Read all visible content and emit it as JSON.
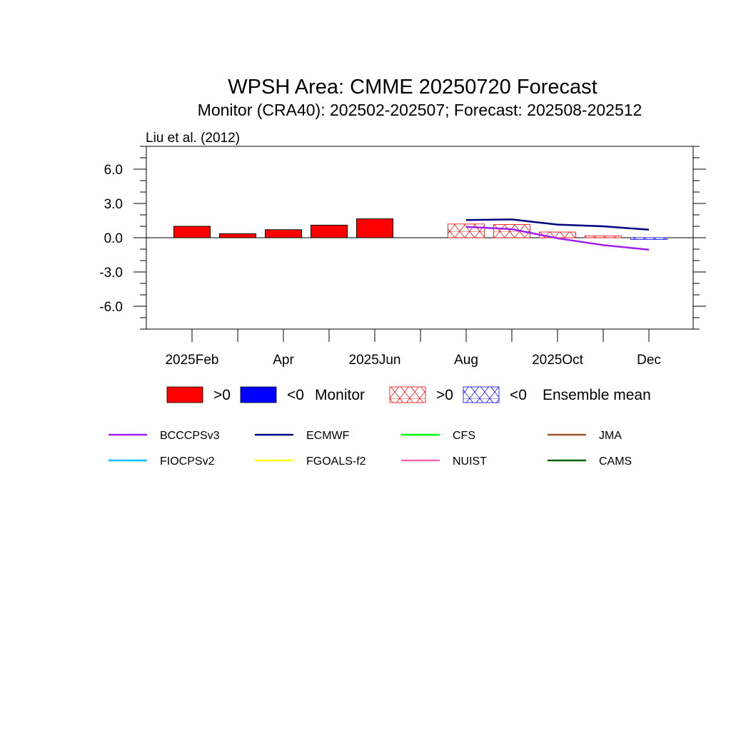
{
  "chart_data": {
    "type": "bar",
    "title": "WPSH Area: CMME 20250720 Forecast",
    "subtitle": "Monitor (CRA40): 202502-202507; Forecast: 202508-202512",
    "annotation": "Liu et al. (2012)",
    "ylim": [
      -8,
      8
    ],
    "yticks": [
      6.0,
      3.0,
      0.0,
      -3.0,
      -6.0
    ],
    "ytick_labels": [
      "6.0",
      "3.0",
      "0.0",
      "-3.0",
      "-6.0"
    ],
    "months": [
      "2025-02",
      "2025-03",
      "2025-04",
      "2025-05",
      "2025-06",
      "2025-07",
      "2025-08",
      "2025-09",
      "2025-10",
      "2025-11",
      "2025-12"
    ],
    "xtick_labels": [
      "2025Feb",
      "",
      "Apr",
      "",
      "2025Jun",
      "",
      "Aug",
      "",
      "2025Oct",
      "",
      "Dec"
    ],
    "monitor": {
      "months": [
        "2025-02",
        "2025-03",
        "2025-04",
        "2025-05",
        "2025-06"
      ],
      "values": [
        1.0,
        0.35,
        0.7,
        1.1,
        1.65
      ]
    },
    "ensemble_mean": {
      "months": [
        "2025-08",
        "2025-09",
        "2025-10",
        "2025-11",
        "2025-12"
      ],
      "values": [
        1.2,
        1.15,
        0.5,
        0.15,
        -0.15
      ]
    },
    "series": [
      {
        "name": "BCCCPSv3",
        "color": "#a020f0",
        "months": [
          "2025-08",
          "2025-09",
          "2025-10",
          "2025-11",
          "2025-12"
        ],
        "values": [
          0.95,
          0.75,
          -0.05,
          -0.65,
          -1.05
        ]
      },
      {
        "name": "ECMWF",
        "color": "#000080",
        "months": [
          "2025-08",
          "2025-09",
          "2025-10",
          "2025-11",
          "2025-12"
        ],
        "values": [
          1.55,
          1.6,
          1.15,
          1.0,
          0.7
        ]
      },
      {
        "name": "CFS",
        "color": "#00ff00",
        "months": [],
        "values": []
      },
      {
        "name": "JMA",
        "color": "#a0522d",
        "months": [],
        "values": []
      },
      {
        "name": "FIOCPSv2",
        "color": "#00bfff",
        "months": [],
        "values": []
      },
      {
        "name": "FGOALS-f2",
        "color": "#ffff00",
        "months": [],
        "values": []
      },
      {
        "name": "NUIST",
        "color": "#ff69b4",
        "months": [],
        "values": []
      },
      {
        "name": "CAMS",
        "color": "#006400",
        "months": [],
        "values": []
      }
    ],
    "legend_top": {
      "pos_label": ">0",
      "neg_label": "<0",
      "monitor_label": "Monitor",
      "ens_label": "Ensemble mean",
      "pos_color": "#ff0000",
      "neg_color": "#0000ff"
    },
    "legend_placement": "bottom",
    "grid": false
  }
}
